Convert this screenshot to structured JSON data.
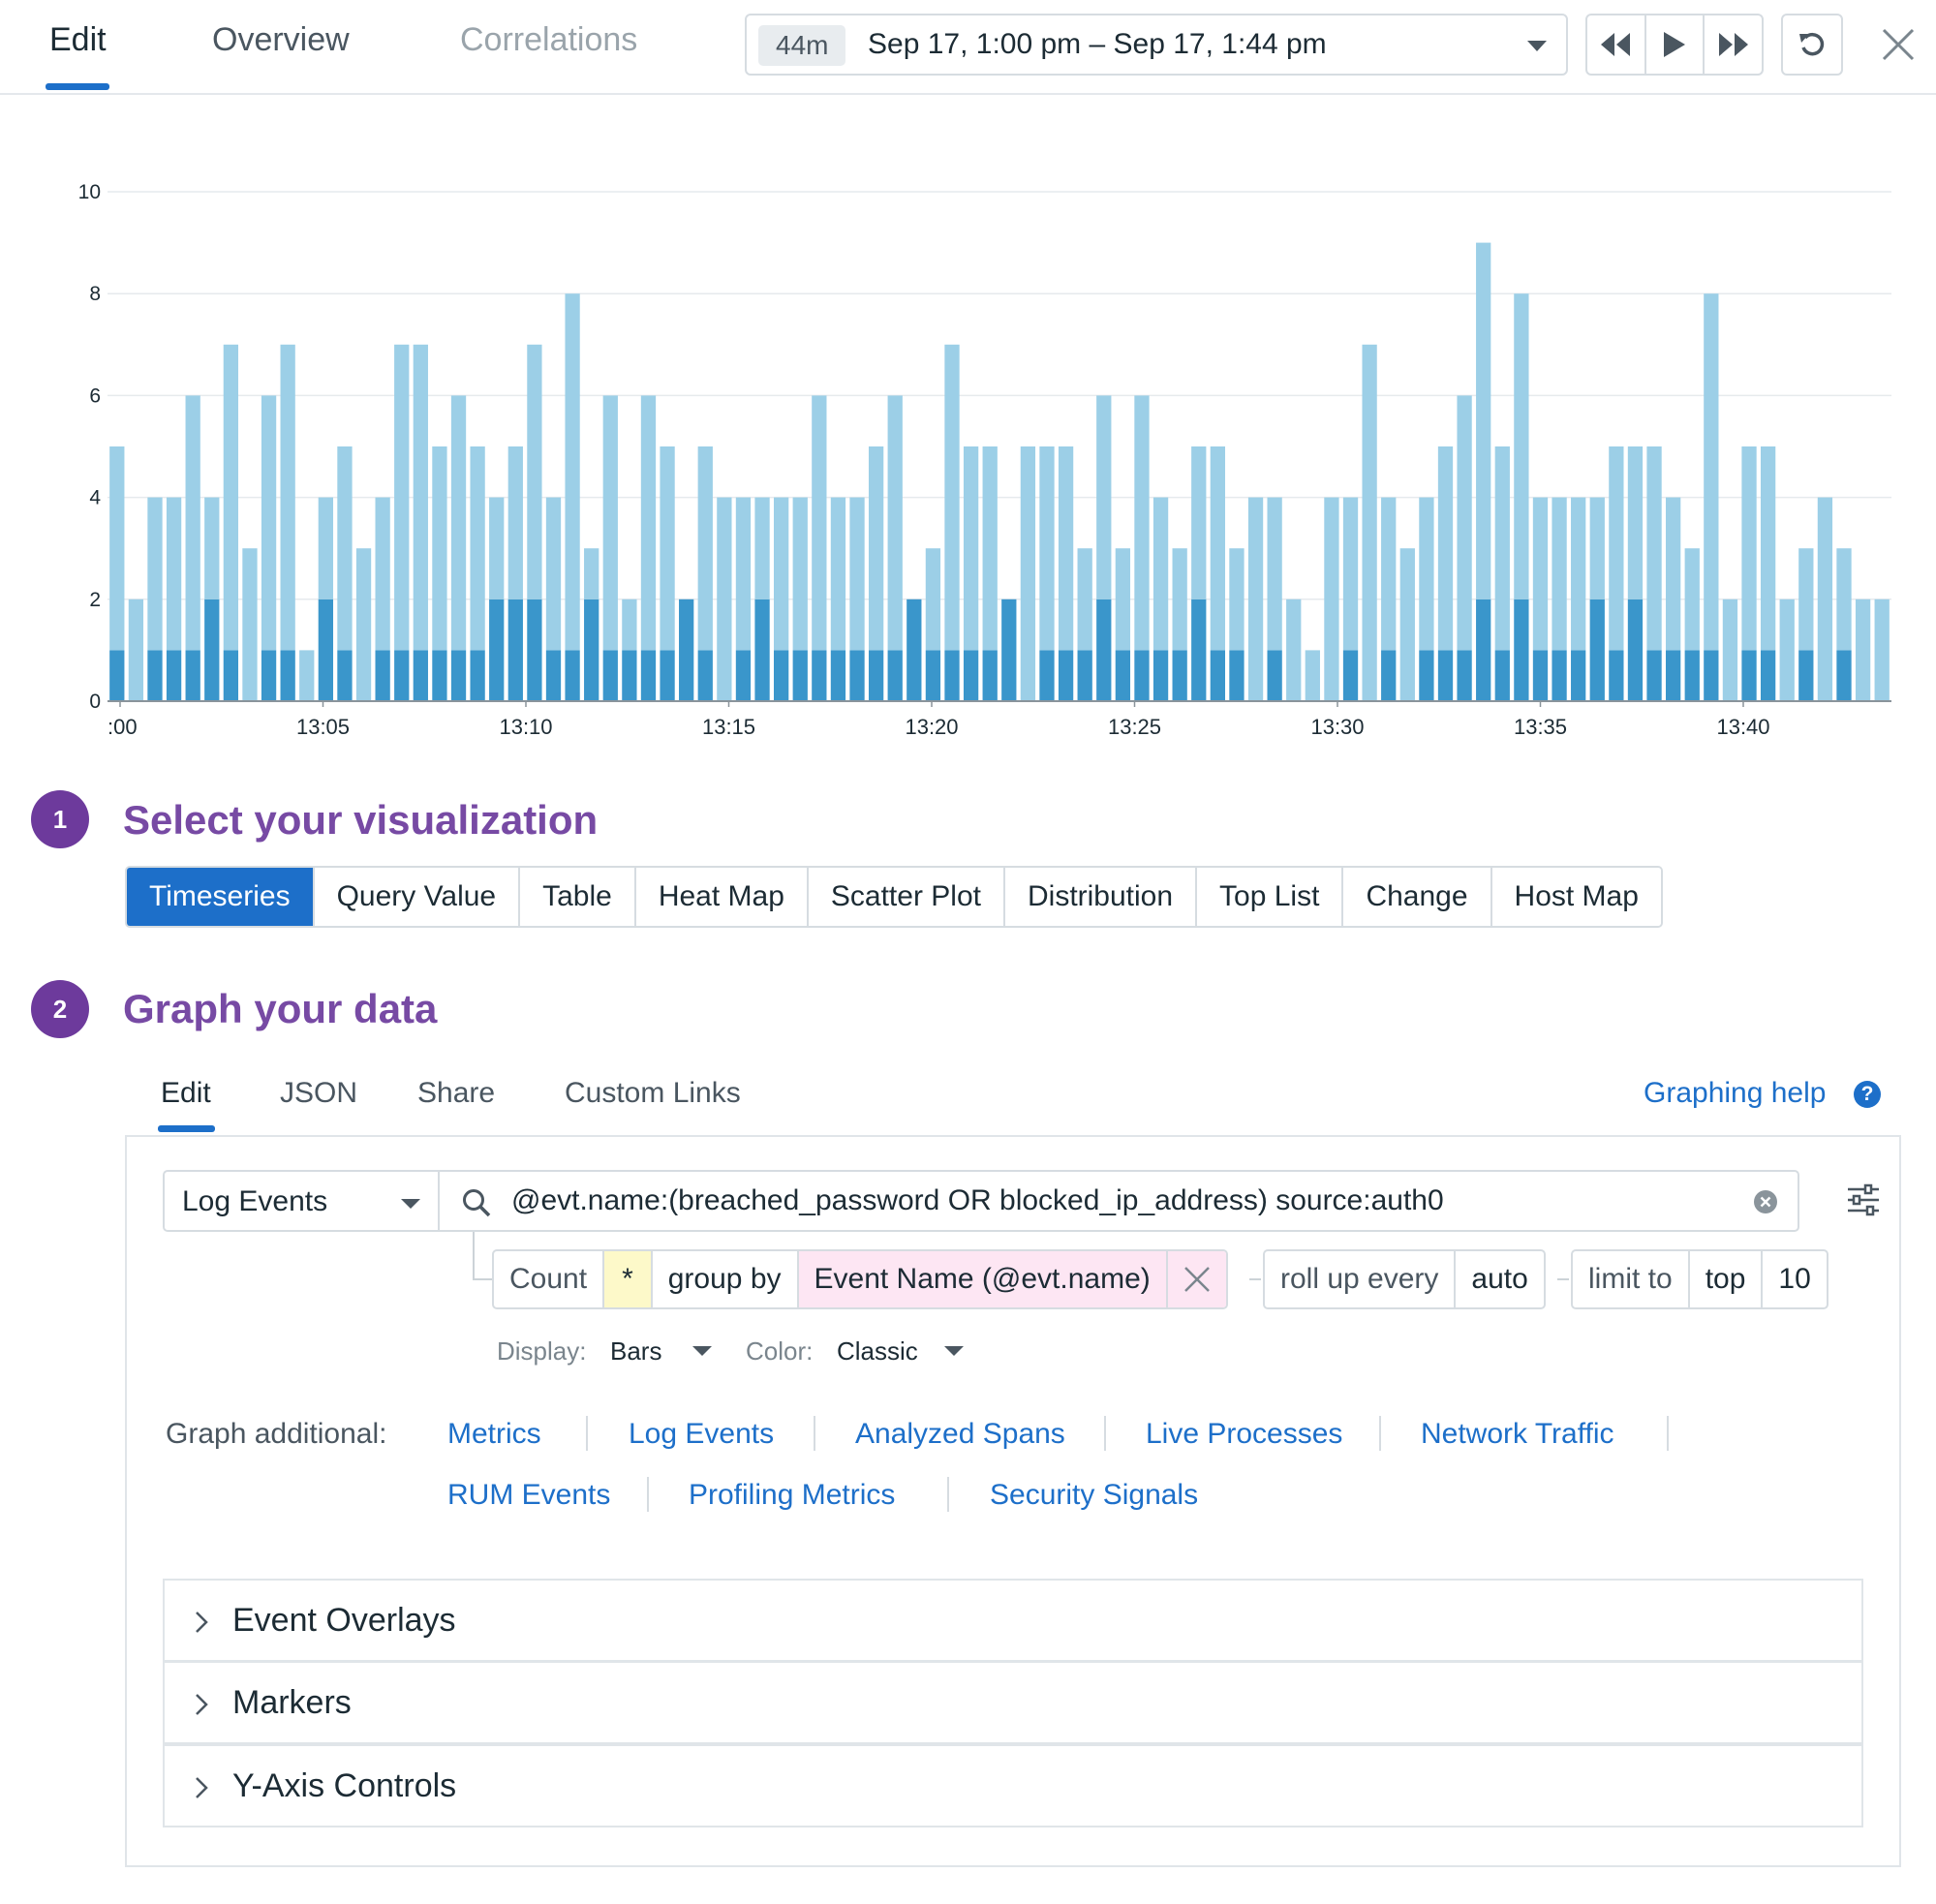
{
  "header": {
    "tabs": [
      {
        "label": "Edit",
        "state": "active"
      },
      {
        "label": "Overview",
        "state": "normal"
      },
      {
        "label": "Correlations",
        "state": "disabled"
      }
    ],
    "time_badge": "44m",
    "time_range": "Sep 17, 1:00 pm – Sep 17, 1:44 pm",
    "controls": [
      "rewind-icon",
      "play-icon",
      "fast-forward-icon",
      "reset-icon",
      "close-icon"
    ]
  },
  "chart_data": {
    "type": "bar",
    "stacked": true,
    "ylim": [
      0,
      10
    ],
    "yticks": [
      0,
      2,
      4,
      6,
      8,
      10
    ],
    "xtick_labels": [
      ":00",
      "13:05",
      "13:10",
      "13:15",
      "13:20",
      "13:25",
      "13:30",
      "13:35",
      "13:40"
    ],
    "grid": true,
    "colors": {
      "dark": "#3a96cb",
      "light": "#9ccfe7",
      "grid": "#e6eaed",
      "axis": "#8a949b"
    },
    "series": [
      {
        "name": "dark",
        "values": [
          1,
          0,
          1,
          1,
          1,
          2,
          1,
          0,
          1,
          1,
          0,
          2,
          1,
          0,
          1,
          1,
          1,
          1,
          1,
          1,
          2,
          2,
          2,
          1,
          1,
          2,
          1,
          1,
          1,
          1,
          2,
          1,
          0,
          1,
          2,
          1,
          1,
          1,
          1,
          1,
          1,
          1,
          2,
          1,
          1,
          1,
          1,
          2,
          0,
          1,
          1,
          1,
          2,
          1,
          1,
          1,
          1,
          2,
          1,
          1,
          0,
          1,
          0,
          0,
          0,
          1,
          0,
          1,
          0,
          1,
          1,
          1,
          2,
          1,
          2,
          1,
          1,
          1,
          2,
          1,
          2,
          1,
          1,
          1,
          1,
          0,
          1,
          1,
          0,
          1,
          0,
          1,
          0,
          0
        ]
      },
      {
        "name": "light",
        "values": [
          4,
          2,
          3,
          3,
          5,
          2,
          6,
          3,
          5,
          6,
          1,
          2,
          4,
          3,
          3,
          6,
          6,
          4,
          5,
          4,
          2,
          3,
          5,
          3,
          7,
          1,
          5,
          1,
          5,
          4,
          0,
          4,
          4,
          3,
          2,
          3,
          3,
          5,
          3,
          3,
          4,
          5,
          0,
          2,
          6,
          4,
          4,
          0,
          5,
          4,
          4,
          2,
          4,
          2,
          5,
          3,
          2,
          3,
          4,
          2,
          4,
          3,
          2,
          1,
          4,
          3,
          7,
          3,
          3,
          3,
          4,
          5,
          7,
          4,
          6,
          3,
          3,
          3,
          2,
          4,
          3,
          4,
          3,
          2,
          7,
          2,
          4,
          4,
          2,
          2,
          4,
          2,
          2,
          2
        ]
      }
    ]
  },
  "step1": {
    "number": "1",
    "title": "Select your visualization"
  },
  "viz_types": [
    "Timeseries",
    "Query Value",
    "Table",
    "Heat Map",
    "Scatter Plot",
    "Distribution",
    "Top List",
    "Change",
    "Host Map"
  ],
  "viz_selected": "Timeseries",
  "step2": {
    "number": "2",
    "title": "Graph your data"
  },
  "editor_tabs": [
    "Edit",
    "JSON",
    "Share",
    "Custom Links"
  ],
  "graphing_help": "Graphing help",
  "help_icon": "?",
  "query": {
    "source": "Log Events",
    "search": "@evt.name:(breached_password OR blocked_ip_address) source:auth0",
    "aggregation": "Count",
    "measure": "*",
    "group_by_label": "group by",
    "group_by_value": "Event Name (@evt.name)",
    "rollup_label": "roll up every",
    "rollup_value": "auto",
    "limit_label": "limit to",
    "limit_order": "top",
    "limit_value": "10"
  },
  "display": {
    "display_label": "Display:",
    "display_value": "Bars",
    "color_label": "Color:",
    "color_value": "Classic"
  },
  "graph_additional": {
    "label": "Graph additional:",
    "links": [
      "Metrics",
      "Log Events",
      "Analyzed Spans",
      "Live Processes",
      "Network Traffic",
      "RUM Events",
      "Profiling Metrics",
      "Security Signals"
    ]
  },
  "accordions": [
    "Event Overlays",
    "Markers",
    "Y-Axis Controls"
  ],
  "colors": {
    "accent": "#1d6fc9",
    "step": "#774aa4",
    "measure_chip": "#fdf9c9",
    "group_chip": "#fde6f3"
  }
}
